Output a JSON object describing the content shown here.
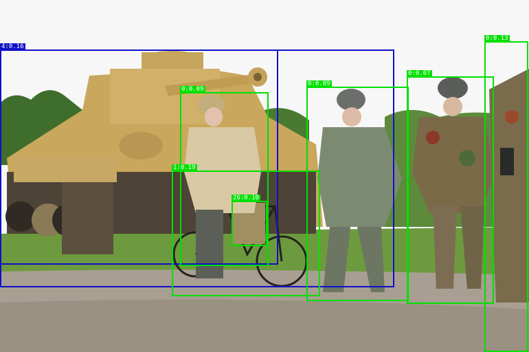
{
  "detections": [
    {
      "label": "4:0.16",
      "color": "#1010c8"
    },
    {
      "label": "",
      "color": "#1010c8"
    },
    {
      "label": "0:0.09",
      "color": "#00e000"
    },
    {
      "label": "1:0.19",
      "color": "#00e000"
    },
    {
      "label": "26:0.10",
      "color": "#00e000"
    },
    {
      "label": "0:0.09",
      "color": "#00e000"
    },
    {
      "label": "0:0.07",
      "color": "#00e000"
    },
    {
      "label": "0:0.13",
      "color": "#00e000"
    }
  ]
}
